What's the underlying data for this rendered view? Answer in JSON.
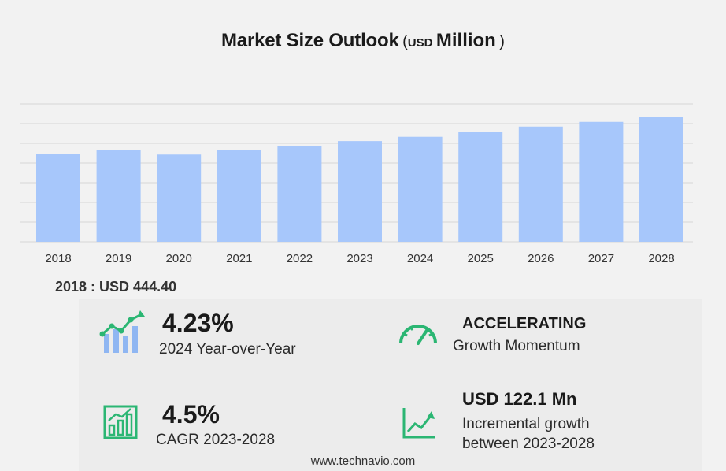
{
  "header": {
    "title": "Market Size Outlook",
    "open_paren": "(",
    "unit": "USD",
    "scale": "Million",
    "close_paren": ")"
  },
  "chart_data": {
    "type": "bar",
    "categories": [
      "2018",
      "2019",
      "2020",
      "2021",
      "2022",
      "2023",
      "2024",
      "2025",
      "2026",
      "2027",
      "2028"
    ],
    "values": [
      444.4,
      467.0,
      443.0,
      466.0,
      488.0,
      511.5,
      533.1,
      557.0,
      585.0,
      609.0,
      633.6
    ],
    "title": "Market Size Outlook (USD Million)",
    "xlabel": "",
    "ylabel": "",
    "ylim": [
      0,
      800
    ],
    "grid": true,
    "bar_color": "#a7c7fb",
    "grid_color": "#d6d6d6"
  },
  "baseline": {
    "text": "2018 : USD  444.40"
  },
  "stats": {
    "yoy": {
      "value": "4.23%",
      "label": "2024 Year-over-Year",
      "icon": "growth-chart-icon"
    },
    "momentum": {
      "value": "ACCELERATING",
      "label": "Growth Momentum",
      "icon": "speedometer-icon"
    },
    "cagr": {
      "value": "4.5%",
      "label": "CAGR 2023-2028",
      "icon": "bar-growth-icon"
    },
    "incremental": {
      "value": "USD 122.1 Mn",
      "label_line1": "Incremental growth",
      "label_line2": "between 2023-2028",
      "icon": "trend-line-icon"
    }
  },
  "footer": {
    "text": "www.technavio.com"
  },
  "colors": {
    "icon_green": "#2bb673",
    "icon_blue": "#8fb6f2",
    "bar": "#a7c7fb"
  }
}
